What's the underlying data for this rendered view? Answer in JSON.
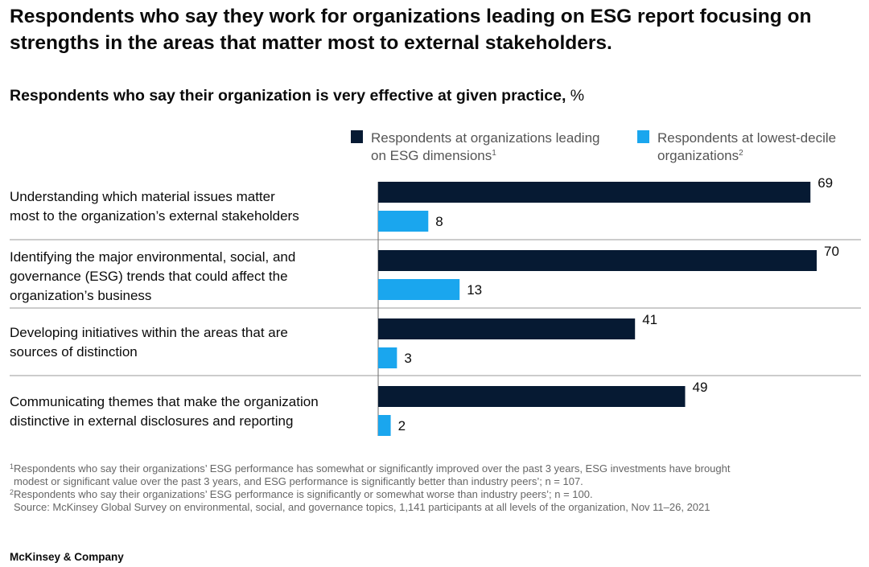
{
  "title": "Respondents who say they work for organizations leading on ESG report focusing on strengths in the areas that matter most to external stakeholders.",
  "subtitle": "Respondents who say their organization is very effective at given practice,",
  "subtitle_unit": "%",
  "colors": {
    "leaders": "#061a33",
    "lowest_decile": "#1aa6ee"
  },
  "chart_data": {
    "type": "bar",
    "orientation": "horizontal",
    "categories": [
      [
        "Understanding which material issues matter",
        "most to the organization’s external stakeholders"
      ],
      [
        "Identifying the major environmental, social, and",
        "governance (ESG) trends that could affect the",
        "organization’s business"
      ],
      [
        "Developing initiatives within the areas that are",
        "sources of distinction"
      ],
      [
        "Communicating themes that make the organization",
        "distinctive in external disclosures and reporting"
      ]
    ],
    "series": [
      {
        "name": [
          "Respondents at organizations leading",
          "on ESG dimensions"
        ],
        "name_sup": "1",
        "values": [
          69,
          70,
          41,
          49
        ]
      },
      {
        "name": [
          "Respondents at lowest-decile",
          "organizations"
        ],
        "name_sup": "2",
        "values": [
          8,
          13,
          3,
          2
        ]
      }
    ],
    "xlim": [
      0,
      70
    ],
    "grid": false,
    "legend_position": "top-right",
    "data_labels": true
  },
  "footnotes": [
    {
      "sup": "1",
      "lines": [
        "Respondents who say their organizations’ ESG performance has somewhat or significantly improved over the past 3 years, ESG investments have brought",
        "modest or significant value over the past 3 years, and ESG performance is significantly better than industry peers’; n = 107."
      ]
    },
    {
      "sup": "2",
      "lines": [
        "Respondents who say their organizations’ ESG performance is significantly or somewhat worse than industry peers’; n = 100."
      ]
    },
    {
      "sup": "",
      "lines": [
        "Source: McKinsey Global Survey on environmental, social, and governance topics, 1,141 participants at all levels of the organization, Nov 11–26, 2021"
      ]
    }
  ],
  "brand": "McKinsey & Company"
}
